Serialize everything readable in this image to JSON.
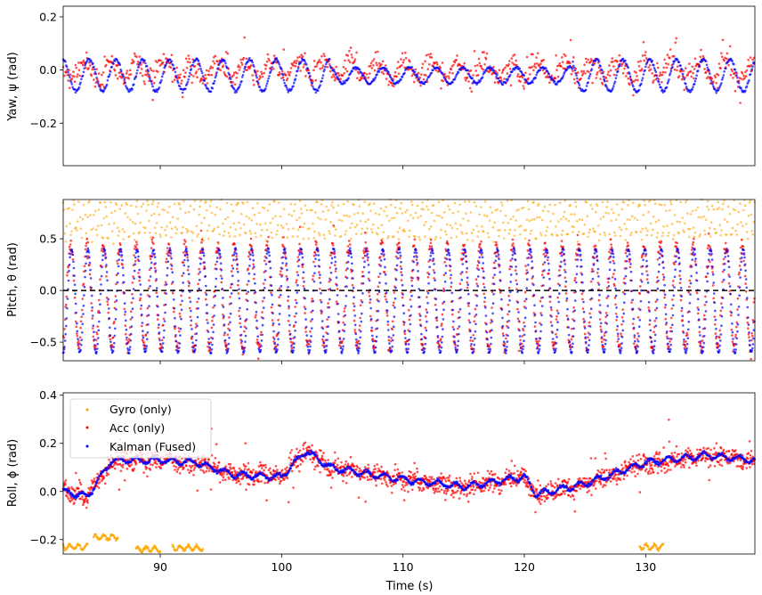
{
  "chart_data": [
    {
      "type": "scatter",
      "panel": "yaw",
      "ylabel": "Yaw, ψ (rad)",
      "xlim": [
        82,
        139
      ],
      "ylim": [
        -0.36,
        0.24
      ],
      "yticks": [
        -0.2,
        0.0,
        0.2
      ],
      "ytick_labels": [
        "−0.2",
        "0.0",
        "0.2"
      ],
      "signals": {
        "acc": {
          "center": 0.0,
          "amp": 0.035,
          "period": 2.2,
          "noise": 0.03
        },
        "kalman": {
          "center": -0.02,
          "amp": 0.06,
          "period": 2.2,
          "noise": 0.005
        }
      }
    },
    {
      "type": "scatter",
      "panel": "pitch",
      "ylabel": "Pitch, θ (rad)",
      "xlim": [
        82,
        139
      ],
      "ylim": [
        -0.68,
        0.88
      ],
      "yticks": [
        -0.5,
        0.0,
        0.5
      ],
      "ytick_labels": [
        "−0.5",
        "0.0",
        "0.5"
      ],
      "reference_line": 0.0,
      "signals": {
        "gyro": {
          "center": 0.7,
          "amp": 0.18,
          "period": 1.35,
          "noise": 0.05
        },
        "acc": {
          "center": -0.05,
          "amp": 0.5,
          "period": 1.35,
          "noise": 0.05
        },
        "kalman": {
          "center": -0.1,
          "amp": 0.5,
          "period": 1.35,
          "noise": 0.01
        }
      }
    },
    {
      "type": "scatter",
      "panel": "roll",
      "ylabel": "Roll, ϕ (rad)",
      "xlabel": "Time (s)",
      "xlim": [
        82,
        139
      ],
      "ylim": [
        -0.26,
        0.41
      ],
      "xticks": [
        90,
        100,
        110,
        120,
        130
      ],
      "xtick_labels": [
        "90",
        "100",
        "110",
        "120",
        "130"
      ],
      "yticks": [
        -0.2,
        0.0,
        0.2,
        0.4
      ],
      "ytick_labels": [
        "−0.2",
        "0.0",
        "0.2",
        "0.4"
      ],
      "legend_position": "top-left",
      "legend": [
        {
          "name": "Gyro (only)",
          "color": "#ffa500"
        },
        {
          "name": "Acc (only)",
          "color": "#ff0000"
        },
        {
          "name": "Kalman (Fused)",
          "color": "#0000ff"
        }
      ],
      "trend": {
        "x": [
          82,
          84,
          86,
          90,
          93,
          96,
          100,
          102,
          104,
          110,
          115,
          120,
          121,
          125,
          130,
          135,
          139
        ],
        "y": [
          0.0,
          -0.02,
          0.13,
          0.13,
          0.12,
          0.07,
          0.06,
          0.17,
          0.1,
          0.05,
          0.02,
          0.06,
          -0.01,
          0.03,
          0.12,
          0.15,
          0.13
        ]
      },
      "gyro_segments": [
        {
          "x0": 82.0,
          "x1": 84.0,
          "y": -0.23
        },
        {
          "x0": 84.5,
          "x1": 86.5,
          "y": -0.19
        },
        {
          "x0": 88.0,
          "x1": 90.0,
          "y": -0.24
        },
        {
          "x0": 91.0,
          "x1": 93.5,
          "y": -0.235
        },
        {
          "x0": 129.5,
          "x1": 131.5,
          "y": -0.23
        }
      ]
    }
  ]
}
